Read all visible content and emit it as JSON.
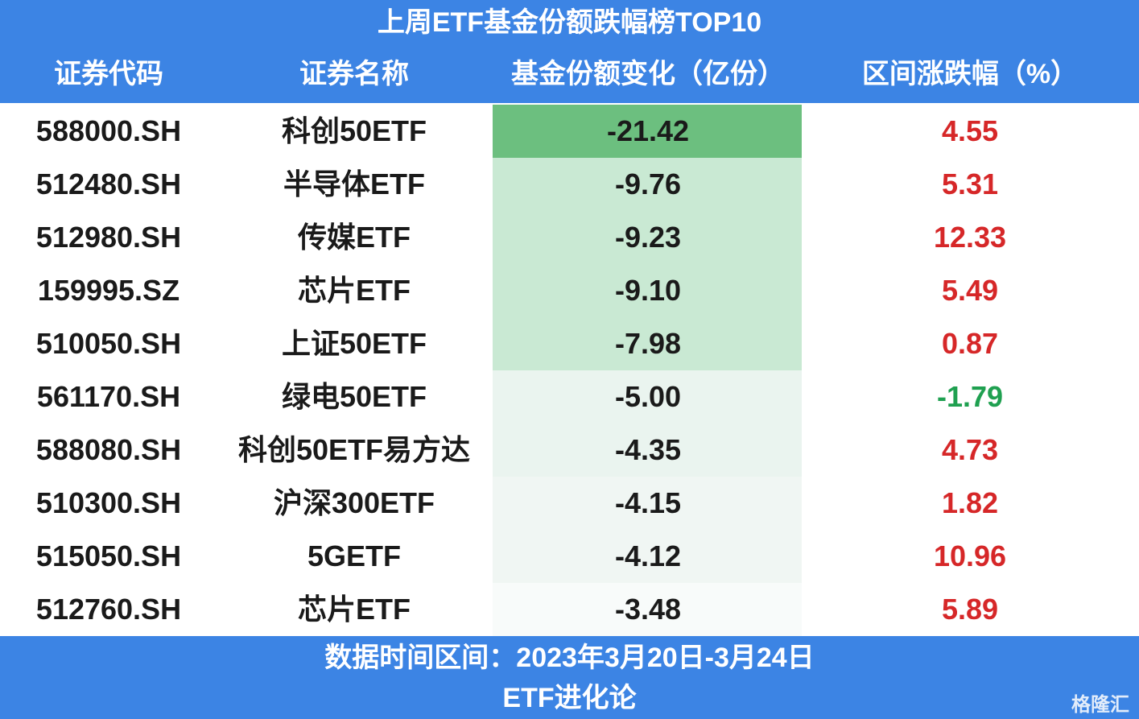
{
  "header": {
    "title": "上周ETF基金份额跌幅榜TOP10"
  },
  "table": {
    "columns": [
      "证券代码",
      "证券名称",
      "基金份额变化（亿份）",
      "区间涨跌幅（%）"
    ],
    "rows": [
      [
        "588000.SH",
        "科创50ETF",
        "-21.42",
        "4.55"
      ],
      [
        "512480.SH",
        "半导体ETF",
        "-9.76",
        "5.31"
      ],
      [
        "512980.SH",
        "传媒ETF",
        "-9.23",
        "12.33"
      ],
      [
        "159995.SZ",
        "芯片ETF",
        "-9.10",
        "5.49"
      ],
      [
        "510050.SH",
        "上证50ETF",
        "-7.98",
        "0.87"
      ],
      [
        "561170.SH",
        "绿电50ETF",
        "-5.00",
        "-1.79"
      ],
      [
        "588080.SH",
        "科创50ETF易方达",
        "-4.35",
        "4.73"
      ],
      [
        "510300.SH",
        "沪深300ETF",
        "-4.15",
        "1.82"
      ],
      [
        "515050.SH",
        "5GETF",
        "-4.12",
        "10.96"
      ],
      [
        "512760.SH",
        "芯片ETF",
        "-3.48",
        "5.89"
      ]
    ]
  },
  "footer": {
    "date_range": "数据时间区间：2023年3月20日-3月24日",
    "source": "ETF进化论"
  },
  "watermark": "格隆汇"
}
